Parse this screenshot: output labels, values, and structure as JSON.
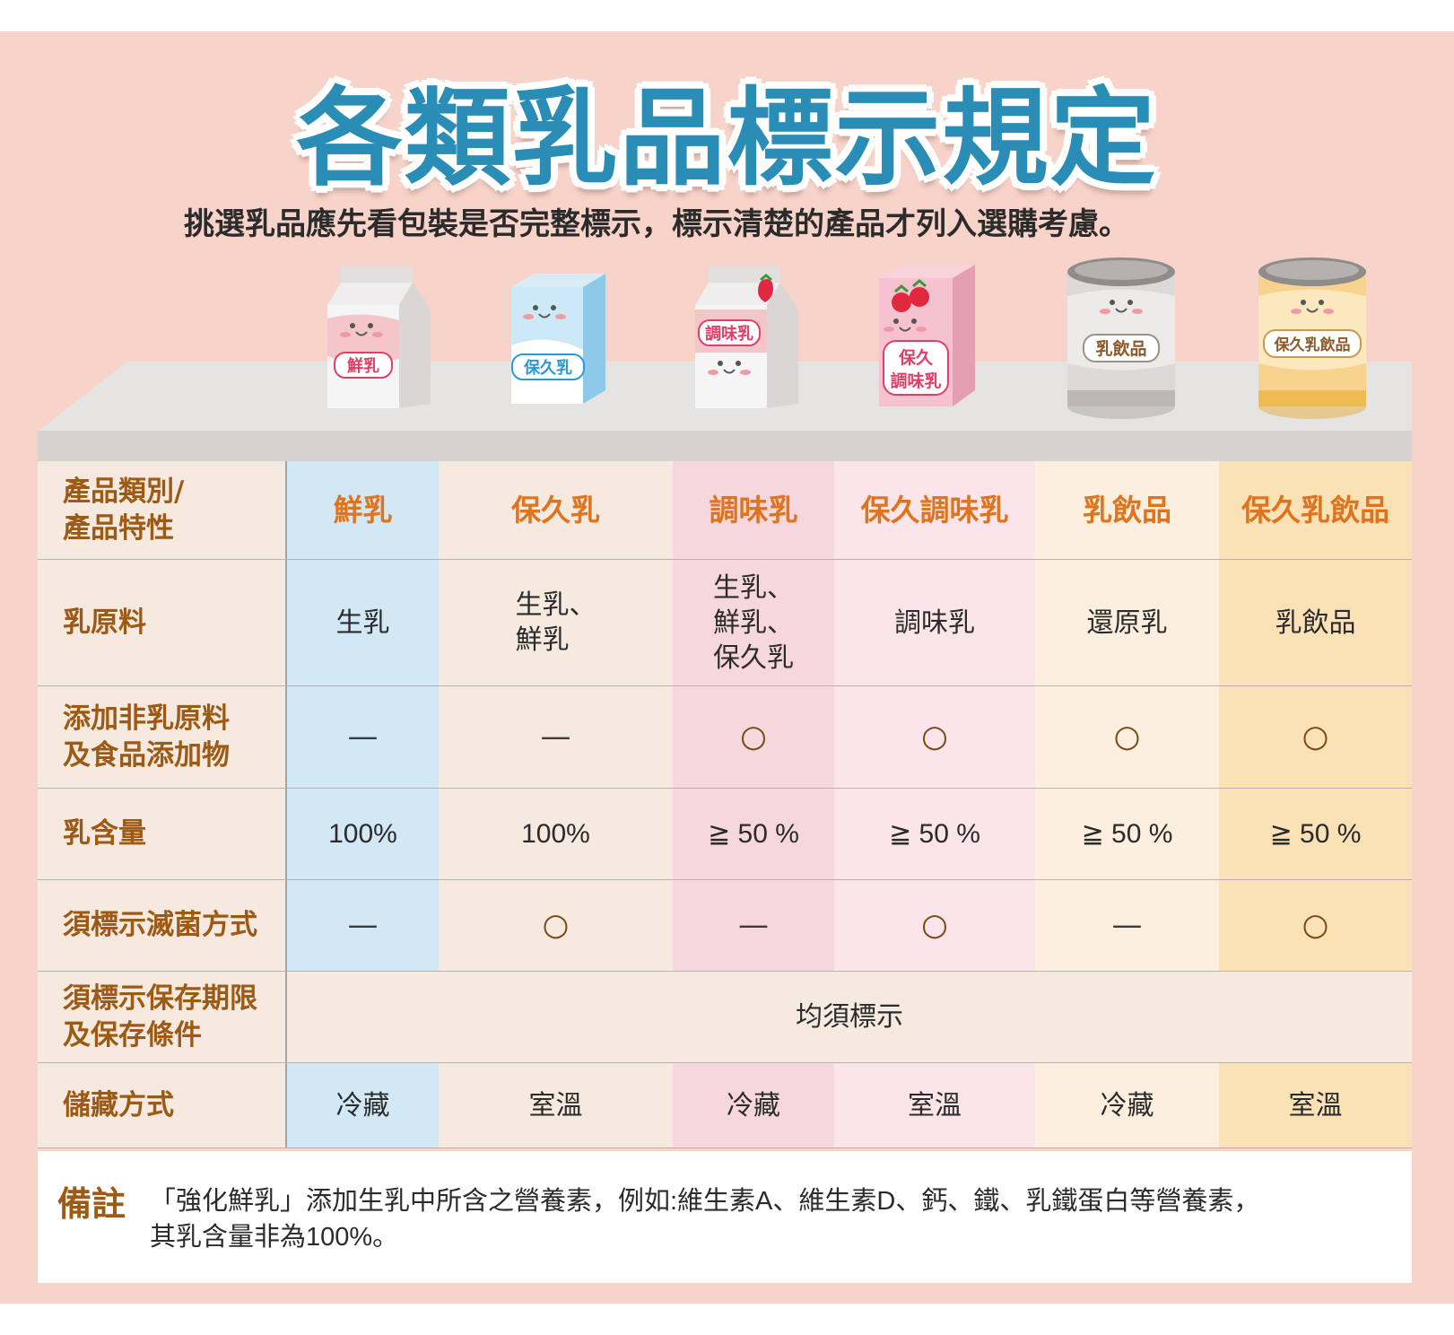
{
  "title": "各類乳品標示規定",
  "subtitle": "挑選乳品應先看包裝是否完整標示，標示清楚的產品才列入選購考慮。",
  "products": [
    {
      "label": "鮮乳",
      "type": "carton",
      "color": "#f3c7c9"
    },
    {
      "label": "保久乳",
      "type": "tetra",
      "color": "#b9def3"
    },
    {
      "label": "調味乳",
      "type": "carton-strawberry",
      "color": "#f3c7c9"
    },
    {
      "label1": "保久",
      "label2": "調味乳",
      "type": "tetra-strawberry",
      "color": "#f4b8c6"
    },
    {
      "label": "乳飲品",
      "type": "can",
      "color": "#d9d6d4"
    },
    {
      "label": "保久乳飲品",
      "type": "can",
      "color": "#f7d38f"
    }
  ],
  "table": {
    "header": {
      "label_line1": "產品類別/",
      "label_line2": "產品特性",
      "columns": [
        "鮮乳",
        "保久乳",
        "調味乳",
        "保久調味乳",
        "乳飲品",
        "保久乳飲品"
      ]
    },
    "rows": [
      {
        "label": "乳原料",
        "values": [
          "生乳",
          "生乳、\n鮮乳",
          "生乳、\n鮮乳、\n保久乳",
          "調味乳",
          "還原乳",
          "乳飲品"
        ]
      },
      {
        "label_line1": "添加非乳原料",
        "label_line2": "及食品添加物",
        "values": [
          "—",
          "—",
          "○",
          "○",
          "○",
          "○"
        ]
      },
      {
        "label": "乳含量",
        "values": [
          "100%",
          "100%",
          "≧ 50 %",
          "≧ 50 %",
          "≧ 50 %",
          "≧ 50 %"
        ]
      },
      {
        "label": "須標示滅菌方式",
        "values": [
          "—",
          "○",
          "—",
          "○",
          "—",
          "○"
        ]
      },
      {
        "label_line1": "須標示保存期限",
        "label_line2": "及保存條件",
        "span_value": "均須標示"
      },
      {
        "label": "儲藏方式",
        "values": [
          "冷藏",
          "室溫",
          "冷藏",
          "室溫",
          "冷藏",
          "室溫"
        ]
      }
    ]
  },
  "note": {
    "label": "備註",
    "line1": "「強化鮮乳」添加生乳中所含之營養素，例如:維生素A、維生素D、鈣、鐵、乳鐵蛋白等營養素，",
    "line2": "其乳含量非為100%。"
  },
  "colors": {
    "background": "#f7d3c9",
    "title": "#2a8db5",
    "header_text": "#e0741e",
    "label_text": "#9c5a15",
    "col_fresh": "#d3e8f5",
    "col_uht": "#f6e9df",
    "col_flavored": "#f7d7de",
    "col_uht_flavored": "#fbe5ea",
    "col_dairy_drink": "#fcefdf",
    "col_uht_dairy_drink": "#fbe1b6"
  }
}
